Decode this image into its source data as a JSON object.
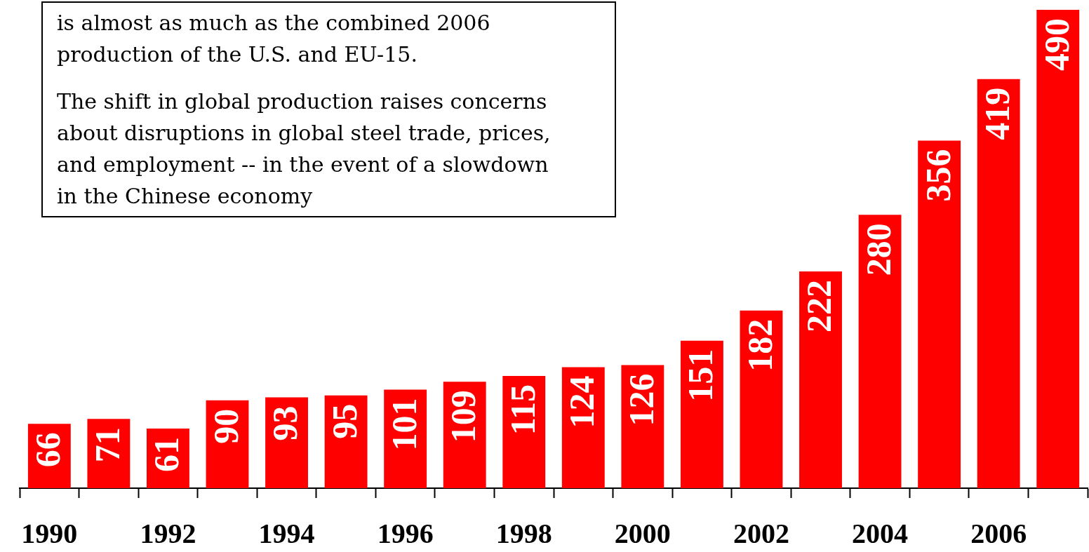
{
  "chart_data": {
    "type": "bar",
    "categories": [
      "1990",
      null,
      "1992",
      null,
      "1994",
      null,
      "1996",
      null,
      "1998",
      null,
      "2000",
      null,
      "2002",
      null,
      "2004",
      null,
      "2006",
      null
    ],
    "values": [
      66,
      71,
      61,
      90,
      93,
      95,
      101,
      109,
      115,
      124,
      126,
      151,
      182,
      222,
      280,
      356,
      419,
      490
    ],
    "color": "#ff0000",
    "data_labels": true,
    "tick_labels": "x",
    "annotations": [
      "is almost as much as the combined 2006 production of the U.S. and EU-15.",
      "The shift in global production raises concerns about disruptions in global steel trade, prices, and employment -- in the event of a slowdown in the Chinese economy"
    ]
  }
}
